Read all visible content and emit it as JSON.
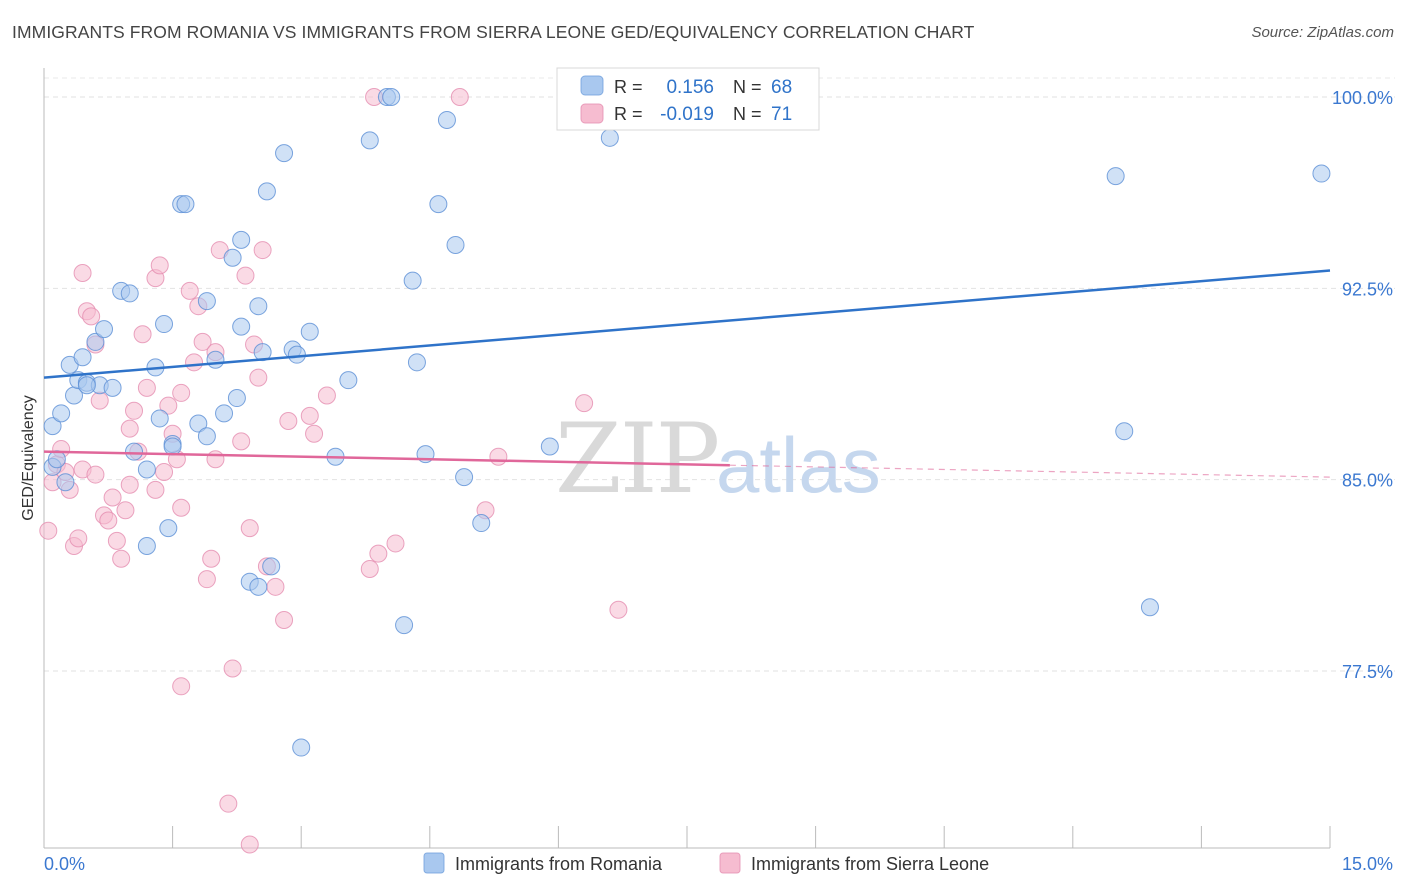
{
  "title": "IMMIGRANTS FROM ROMANIA VS IMMIGRANTS FROM SIERRA LEONE GED/EQUIVALENCY CORRELATION CHART",
  "source": "Source: ZipAtlas.com",
  "watermark": {
    "zip": "ZIP",
    "atlas": "atlas"
  },
  "colors": {
    "blue": "#2f73c9",
    "pink": "#e0679a",
    "blue_fill": "#a9c8ef",
    "pink_fill": "#f6bcd0",
    "tick_text": "#3b78d0"
  },
  "chart_data": {
    "type": "scatter",
    "ylabel": "GED/Equivalency",
    "xlabel": "",
    "xlim": [
      0,
      15
    ],
    "ylim": [
      70.5,
      101
    ],
    "x_tick_labels": [
      "0.0%",
      "15.0%"
    ],
    "y_ticks": [
      100,
      92.5,
      85,
      77.5
    ],
    "y_tick_labels": [
      "100.0%",
      "92.5%",
      "85.0%",
      "77.5%"
    ],
    "legend_stats": [
      {
        "r_label": "R =",
        "r_value": "0.156",
        "n_label": "N =",
        "n_value": "68"
      },
      {
        "r_label": "R =",
        "r_value": "-0.019",
        "n_label": "N =",
        "n_value": "71"
      }
    ],
    "series": [
      {
        "name": "Immigrants from Romania",
        "color": "blue",
        "trend": {
          "x0": 0,
          "y0": 89.0,
          "x1": 15,
          "y1": 93.2,
          "solid_to": 15
        },
        "points": [
          [
            0.1,
            87.1
          ],
          [
            0.1,
            85.5
          ],
          [
            0.2,
            87.6
          ],
          [
            0.3,
            89.5
          ],
          [
            0.35,
            88.3
          ],
          [
            0.4,
            88.9
          ],
          [
            0.45,
            89.8
          ],
          [
            0.5,
            88.8
          ],
          [
            0.6,
            90.4
          ],
          [
            0.65,
            88.7
          ],
          [
            0.7,
            90.9
          ],
          [
            0.8,
            88.6
          ],
          [
            0.9,
            92.4
          ],
          [
            1.0,
            92.3
          ],
          [
            1.05,
            86.1
          ],
          [
            1.2,
            85.4
          ],
          [
            1.3,
            89.4
          ],
          [
            1.35,
            87.4
          ],
          [
            1.4,
            91.1
          ],
          [
            1.5,
            86.4
          ],
          [
            1.6,
            95.8
          ],
          [
            1.65,
            95.8
          ],
          [
            1.8,
            87.2
          ],
          [
            1.9,
            86.7
          ],
          [
            1.9,
            92.0
          ],
          [
            2.0,
            89.7
          ],
          [
            2.1,
            87.6
          ],
          [
            2.2,
            93.7
          ],
          [
            2.25,
            88.2
          ],
          [
            2.3,
            94.4
          ],
          [
            2.3,
            91.0
          ],
          [
            2.4,
            81.0
          ],
          [
            2.5,
            91.8
          ],
          [
            2.55,
            90.0
          ],
          [
            2.6,
            96.3
          ],
          [
            2.65,
            81.6
          ],
          [
            2.8,
            97.8
          ],
          [
            2.9,
            90.1
          ],
          [
            2.95,
            89.9
          ],
          [
            3.1,
            90.8
          ],
          [
            3.4,
            85.9
          ],
          [
            3.55,
            88.9
          ],
          [
            3.8,
            98.3
          ],
          [
            4.0,
            100.0
          ],
          [
            4.05,
            100.0
          ],
          [
            4.2,
            79.3
          ],
          [
            4.3,
            92.8
          ],
          [
            4.35,
            89.6
          ],
          [
            4.45,
            86.0
          ],
          [
            4.6,
            95.8
          ],
          [
            4.7,
            99.1
          ],
          [
            4.8,
            94.2
          ],
          [
            4.9,
            85.1
          ],
          [
            5.1,
            83.3
          ],
          [
            5.9,
            86.3
          ],
          [
            6.6,
            98.4
          ],
          [
            12.5,
            96.9
          ],
          [
            12.6,
            86.9
          ],
          [
            12.9,
            80.0
          ],
          [
            14.9,
            97.0
          ],
          [
            1.45,
            83.1
          ],
          [
            0.25,
            84.9
          ],
          [
            1.2,
            82.4
          ],
          [
            1.5,
            86.3
          ],
          [
            0.15,
            85.8
          ],
          [
            0.5,
            88.7
          ],
          [
            3.0,
            74.5
          ],
          [
            2.5,
            80.8
          ]
        ]
      },
      {
        "name": "Immigrants from Sierra Leone",
        "color": "pink",
        "trend": {
          "x0": 0,
          "y0": 86.1,
          "x1": 15,
          "y1": 85.1,
          "solid_to": 8.0
        },
        "points": [
          [
            0.05,
            83.0
          ],
          [
            0.1,
            84.9
          ],
          [
            0.15,
            85.6
          ],
          [
            0.2,
            86.2
          ],
          [
            0.25,
            85.3
          ],
          [
            0.3,
            84.6
          ],
          [
            0.35,
            82.4
          ],
          [
            0.4,
            82.7
          ],
          [
            0.45,
            93.1
          ],
          [
            0.5,
            91.6
          ],
          [
            0.55,
            91.4
          ],
          [
            0.6,
            90.3
          ],
          [
            0.65,
            88.1
          ],
          [
            0.7,
            83.6
          ],
          [
            0.75,
            83.4
          ],
          [
            0.8,
            84.3
          ],
          [
            0.85,
            82.6
          ],
          [
            0.9,
            81.9
          ],
          [
            0.95,
            83.8
          ],
          [
            1.0,
            84.8
          ],
          [
            1.05,
            87.7
          ],
          [
            1.1,
            86.1
          ],
          [
            1.15,
            90.7
          ],
          [
            1.2,
            88.6
          ],
          [
            1.3,
            92.9
          ],
          [
            1.35,
            93.4
          ],
          [
            1.4,
            85.3
          ],
          [
            1.45,
            87.9
          ],
          [
            1.5,
            86.8
          ],
          [
            1.55,
            85.8
          ],
          [
            1.6,
            83.9
          ],
          [
            1.7,
            92.4
          ],
          [
            1.75,
            89.6
          ],
          [
            1.8,
            91.8
          ],
          [
            1.85,
            90.4
          ],
          [
            1.9,
            81.1
          ],
          [
            1.95,
            81.9
          ],
          [
            2.0,
            90.0
          ],
          [
            2.05,
            94.0
          ],
          [
            2.2,
            77.6
          ],
          [
            2.3,
            86.5
          ],
          [
            2.35,
            93.0
          ],
          [
            2.4,
            83.1
          ],
          [
            2.45,
            90.3
          ],
          [
            2.5,
            89.0
          ],
          [
            2.55,
            94.0
          ],
          [
            2.6,
            81.6
          ],
          [
            2.7,
            80.8
          ],
          [
            2.8,
            79.5
          ],
          [
            2.85,
            87.3
          ],
          [
            3.1,
            87.5
          ],
          [
            3.15,
            86.8
          ],
          [
            3.3,
            88.3
          ],
          [
            3.8,
            81.5
          ],
          [
            3.9,
            82.1
          ],
          [
            4.1,
            82.5
          ],
          [
            3.85,
            100.0
          ],
          [
            4.85,
            100.0
          ],
          [
            5.15,
            83.8
          ],
          [
            5.3,
            85.9
          ],
          [
            6.3,
            88.0
          ],
          [
            6.7,
            79.9
          ],
          [
            1.6,
            76.9
          ],
          [
            2.15,
            72.3
          ],
          [
            2.4,
            70.7
          ],
          [
            0.45,
            85.4
          ],
          [
            0.6,
            85.2
          ],
          [
            1.0,
            87.0
          ],
          [
            1.6,
            88.4
          ],
          [
            1.3,
            84.6
          ],
          [
            2.0,
            85.8
          ]
        ]
      }
    ]
  },
  "legend": {
    "items": [
      {
        "label": "Immigrants from Romania"
      },
      {
        "label": "Immigrants from Sierra Leone"
      }
    ]
  }
}
